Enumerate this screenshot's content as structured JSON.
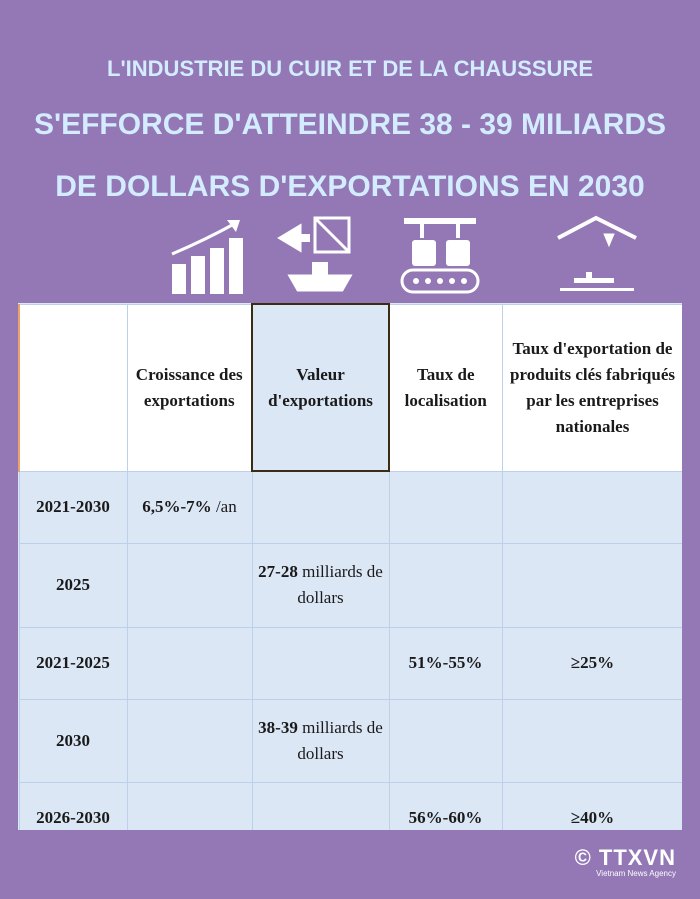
{
  "header": {
    "line1": "L'INDUSTRIE DU CUIR ET DE LA CHAUSSURE",
    "line2": "S'EFFORCE D'ATTEINDRE 38 - 39 MILIARDS",
    "line3": "DE DOLLARS D'EXPORTATIONS EN 2030"
  },
  "table": {
    "columns": [
      "Croissance des exportations",
      "Valeur d'exportations",
      "Taux de localisation",
      "Taux d'exportation de produits clés fabriqués par les entreprises nationales"
    ],
    "rows": [
      {
        "period": "2021-2030",
        "cells": [
          {
            "strong": "6,5%-7%",
            "text": "/an"
          },
          null,
          null,
          null
        ]
      },
      {
        "period": "2025",
        "cells": [
          null,
          {
            "strong": "27-28",
            "text": "milliards de dollars"
          },
          null,
          null
        ]
      },
      {
        "period": "2021-2025",
        "cells": [
          null,
          null,
          "51%-55%",
          "≥25%"
        ]
      },
      {
        "period": "2030",
        "cells": [
          null,
          {
            "strong": "38-39",
            "text": "milliards de dollars"
          },
          null,
          null
        ]
      },
      {
        "period": "2026-2030",
        "cells": [
          null,
          null,
          "56%-60%",
          "≥40%"
        ]
      }
    ]
  },
  "footer": {
    "copyright": "© TTXVN",
    "agency": "Vietnam News Agency"
  }
}
